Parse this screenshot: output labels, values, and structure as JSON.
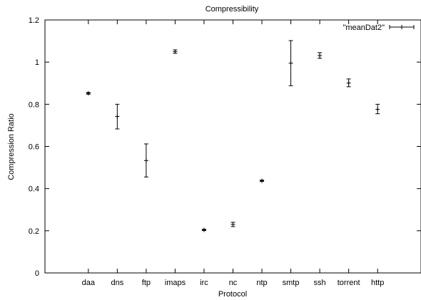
{
  "chart_data": {
    "type": "scatter",
    "title": "Compressibility",
    "xlabel": "Protocol",
    "ylabel": "Compression Ratio",
    "ylim": [
      0,
      1.2
    ],
    "yticks": [
      "0",
      "0.2",
      "0.4",
      "0.6",
      "0.8",
      "1",
      "1.2"
    ],
    "grid": false,
    "legend_position": "top-right",
    "categories": [
      "daa",
      "dns",
      "ftp",
      "imaps",
      "irc",
      "nc",
      "ntp",
      "smtp",
      "ssh",
      "torrent",
      "http"
    ],
    "series": [
      {
        "name": "\"meanDat2\"",
        "color": "#000000",
        "points": [
          {
            "x": "daa",
            "y": 0.852,
            "low": 0.848,
            "high": 0.856
          },
          {
            "x": "dns",
            "y": 0.742,
            "low": 0.683,
            "high": 0.8
          },
          {
            "x": "ftp",
            "y": 0.533,
            "low": 0.455,
            "high": 0.612
          },
          {
            "x": "imaps",
            "y": 1.05,
            "low": 1.042,
            "high": 1.058
          },
          {
            "x": "irc",
            "y": 0.204,
            "low": 0.201,
            "high": 0.207
          },
          {
            "x": "nc",
            "y": 0.23,
            "low": 0.22,
            "high": 0.24
          },
          {
            "x": "ntp",
            "y": 0.437,
            "low": 0.434,
            "high": 0.44
          },
          {
            "x": "smtp",
            "y": 0.995,
            "low": 0.888,
            "high": 1.102
          },
          {
            "x": "ssh",
            "y": 1.031,
            "low": 1.018,
            "high": 1.045
          },
          {
            "x": "torrent",
            "y": 0.901,
            "low": 0.883,
            "high": 0.92
          },
          {
            "x": "http",
            "y": 0.776,
            "low": 0.755,
            "high": 0.8
          }
        ]
      }
    ]
  }
}
